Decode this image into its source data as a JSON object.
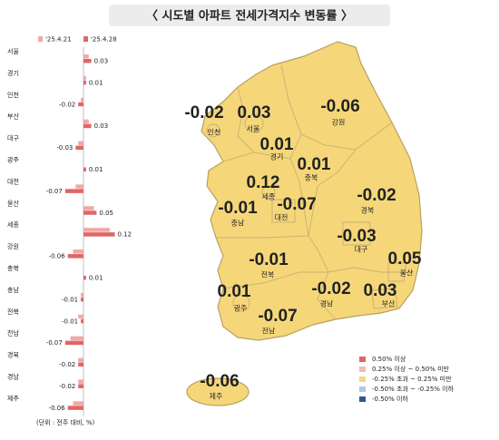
{
  "chart_data": {
    "type": "hbar",
    "title": "〈 시도별 아파트 전세가격지수 변동률 〉",
    "categories": [
      "서울",
      "경기",
      "인천",
      "부산",
      "대구",
      "광주",
      "대전",
      "울산",
      "세종",
      "강원",
      "충북",
      "충남",
      "전북",
      "전남",
      "경북",
      "경남",
      "제주"
    ],
    "series": [
      {
        "name": "'25.4.21",
        "color": "#f2a7a7",
        "values": [
          0.02,
          0.01,
          -0.01,
          0.02,
          -0.02,
          0.0,
          -0.03,
          0.04,
          0.1,
          -0.04,
          0.0,
          -0.01,
          -0.02,
          -0.05,
          -0.02,
          -0.02,
          -0.04
        ]
      },
      {
        "name": "'25.4.28",
        "color": "#e06666",
        "values": [
          0.03,
          0.01,
          -0.02,
          0.03,
          -0.03,
          0.01,
          -0.07,
          0.05,
          0.12,
          -0.06,
          0.01,
          -0.01,
          -0.01,
          -0.07,
          -0.02,
          -0.02,
          -0.06
        ]
      }
    ],
    "xlim": [
      -0.25,
      0.25
    ],
    "note": "(단위 : 전주 대비, %)"
  },
  "map": {
    "fill": "#f5d77a",
    "regions": [
      {
        "name": "인천",
        "value": -0.02
      },
      {
        "name": "서울",
        "value": 0.03
      },
      {
        "name": "강원",
        "value": -0.06
      },
      {
        "name": "경기",
        "value": 0.01
      },
      {
        "name": "충북",
        "value": 0.01
      },
      {
        "name": "세종",
        "value": 0.12
      },
      {
        "name": "대전",
        "value": -0.07
      },
      {
        "name": "충남",
        "value": -0.01
      },
      {
        "name": "경북",
        "value": -0.02
      },
      {
        "name": "대구",
        "value": -0.03
      },
      {
        "name": "울산",
        "value": 0.05
      },
      {
        "name": "전북",
        "value": -0.01
      },
      {
        "name": "경남",
        "value": -0.02
      },
      {
        "name": "부산",
        "value": 0.03
      },
      {
        "name": "광주",
        "value": 0.01
      },
      {
        "name": "전남",
        "value": -0.07
      },
      {
        "name": "제주",
        "value": -0.06
      }
    ],
    "legend": [
      {
        "label": "0.50% 이상",
        "color": "#e06666"
      },
      {
        "label": "0.25% 이상 ~ 0.50% 미만",
        "color": "#f4b8b8"
      },
      {
        "label": "-0.25% 초과 ~ 0.25% 미만",
        "color": "#f5d77a"
      },
      {
        "label": "-0.50% 초과 ~ -0.25% 이하",
        "color": "#b4c6e7"
      },
      {
        "label": "-0.50% 이하",
        "color": "#2f5597"
      }
    ]
  }
}
